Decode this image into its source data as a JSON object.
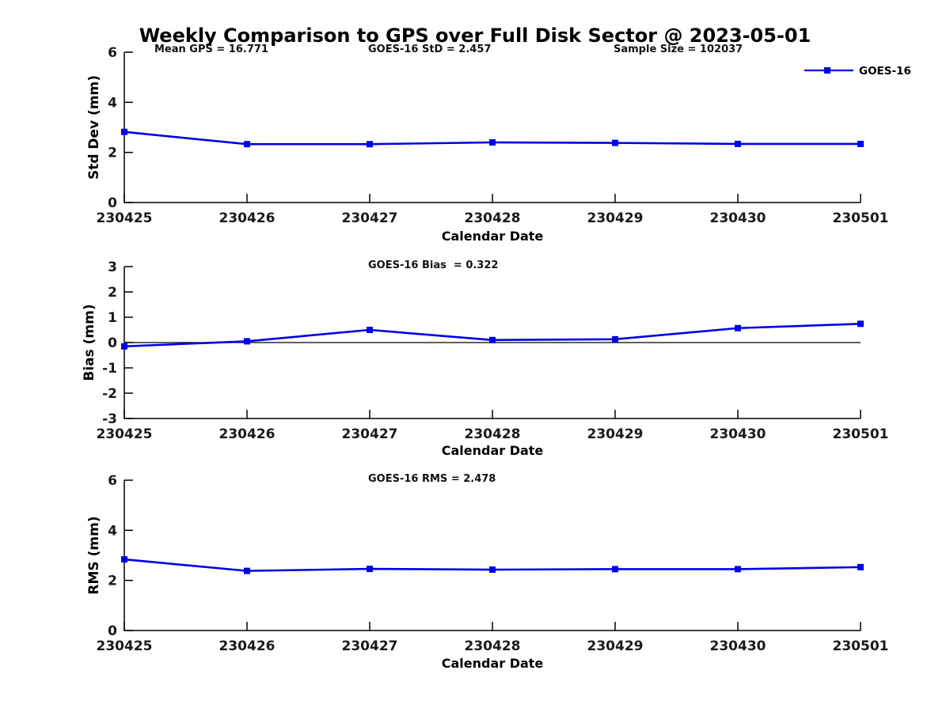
{
  "figure_title": "Weekly Comparison to GPS over Full Disk Sector @ 2023-05-01",
  "legend": {
    "label": "GOES-16",
    "color": "#0000e6",
    "marker": "square"
  },
  "style": {
    "line_color": "#0000e6",
    "axis_color": "#000000",
    "tick_label_color": "#1a1a1a"
  },
  "chart_data": [
    {
      "type": "line",
      "title": "",
      "annotations": [
        "Mean GPS = 16.771",
        "GOES-16 StD = 2.457",
        "Sample Size = 102037"
      ],
      "categories": [
        "230425",
        "230426",
        "230427",
        "230428",
        "230429",
        "230430",
        "230501"
      ],
      "series": [
        {
          "name": "GOES-16",
          "values": [
            2.82,
            2.33,
            2.33,
            2.4,
            2.38,
            2.34,
            2.34
          ]
        }
      ],
      "xlabel": "Calendar Date",
      "ylabel": "Std Dev (mm)",
      "ylim": [
        0,
        6
      ],
      "yticks": [
        0,
        2,
        4,
        6
      ],
      "zero_line": false,
      "grid": false,
      "legend_position": "top-right-outside"
    },
    {
      "type": "line",
      "title": "",
      "annotations": [
        "GOES-16 Bias  = 0.322"
      ],
      "categories": [
        "230425",
        "230426",
        "230427",
        "230428",
        "230429",
        "230430",
        "230501"
      ],
      "series": [
        {
          "name": "GOES-16",
          "values": [
            -0.15,
            0.05,
            0.5,
            0.1,
            0.13,
            0.57,
            0.74
          ]
        }
      ],
      "xlabel": "Calendar Date",
      "ylabel": "Bias (mm)",
      "ylim": [
        -3,
        3
      ],
      "yticks": [
        -3,
        -2,
        -1,
        0,
        1,
        2,
        3
      ],
      "zero_line": true,
      "grid": false,
      "legend_position": "none"
    },
    {
      "type": "line",
      "title": "",
      "annotations": [
        "GOES-16 RMS = 2.478"
      ],
      "categories": [
        "230425",
        "230426",
        "230427",
        "230428",
        "230429",
        "230430",
        "230501"
      ],
      "series": [
        {
          "name": "GOES-16",
          "values": [
            2.84,
            2.38,
            2.46,
            2.43,
            2.45,
            2.45,
            2.53
          ]
        }
      ],
      "xlabel": "Calendar Date",
      "ylabel": "RMS (mm)",
      "ylim": [
        0,
        6
      ],
      "yticks": [
        0,
        2,
        4,
        6
      ],
      "zero_line": false,
      "grid": false,
      "legend_position": "none"
    }
  ]
}
